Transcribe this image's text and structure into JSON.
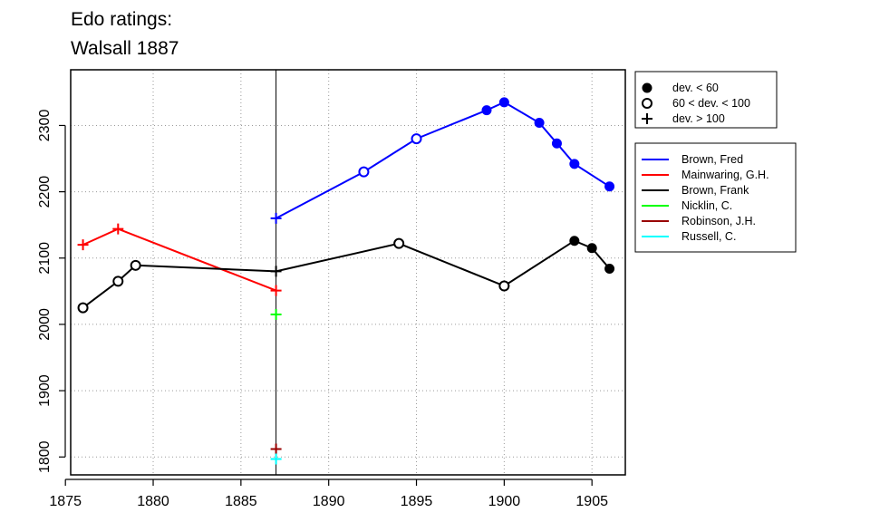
{
  "chart_data": {
    "type": "line",
    "title_lines": [
      "Edo ratings:",
      "Walsall 1887"
    ],
    "xlabel": "",
    "ylabel": "",
    "xlim": [
      1875.3,
      1906.9
    ],
    "ylim": [
      1773,
      2384
    ],
    "xticks": [
      1875,
      1880,
      1885,
      1890,
      1895,
      1900,
      1905
    ],
    "yticks": [
      1800,
      1900,
      2000,
      2100,
      2200,
      2300
    ],
    "grid": true,
    "reference_line_x": 1887,
    "series": [
      {
        "name": "Brown, Fred",
        "color": "#0000ff",
        "points": [
          {
            "x": 1887,
            "y": 2160,
            "dev": "plus"
          },
          {
            "x": 1892,
            "y": 2230,
            "dev": "open"
          },
          {
            "x": 1895,
            "y": 2280,
            "dev": "open"
          },
          {
            "x": 1899,
            "y": 2323,
            "dev": "filled"
          },
          {
            "x": 1900,
            "y": 2335,
            "dev": "filled"
          },
          {
            "x": 1902,
            "y": 2304,
            "dev": "filled"
          },
          {
            "x": 1903,
            "y": 2273,
            "dev": "filled"
          },
          {
            "x": 1904,
            "y": 2242,
            "dev": "filled"
          },
          {
            "x": 1906,
            "y": 2208,
            "dev": "filled"
          }
        ]
      },
      {
        "name": "Mainwaring, G.H.",
        "color": "#ff0000",
        "points": [
          {
            "x": 1876,
            "y": 2120,
            "dev": "plus"
          },
          {
            "x": 1878,
            "y": 2144,
            "dev": "plus"
          },
          {
            "x": 1887,
            "y": 2051,
            "dev": "plus"
          }
        ]
      },
      {
        "name": "Brown, Frank",
        "color": "#000000",
        "points": [
          {
            "x": 1876,
            "y": 2025,
            "dev": "open"
          },
          {
            "x": 1878,
            "y": 2065,
            "dev": "open"
          },
          {
            "x": 1879,
            "y": 2089,
            "dev": "open"
          },
          {
            "x": 1887,
            "y": 2080,
            "dev": "plus"
          },
          {
            "x": 1894,
            "y": 2122,
            "dev": "open"
          },
          {
            "x": 1900,
            "y": 2058,
            "dev": "open"
          },
          {
            "x": 1904,
            "y": 2126,
            "dev": "filled"
          },
          {
            "x": 1905,
            "y": 2115,
            "dev": "filled"
          },
          {
            "x": 1906,
            "y": 2084,
            "dev": "filled"
          }
        ]
      },
      {
        "name": "Nicklin, C.",
        "color": "#00ff00",
        "points": [
          {
            "x": 1887,
            "y": 2015,
            "dev": "plus"
          }
        ]
      },
      {
        "name": "Robinson, J.H.",
        "color": "#990000",
        "points": [
          {
            "x": 1887,
            "y": 1812,
            "dev": "plus"
          }
        ]
      },
      {
        "name": "Russell, C.",
        "color": "#00ffff",
        "points": [
          {
            "x": 1887,
            "y": 1797,
            "dev": "plus"
          }
        ]
      }
    ],
    "symbol_legend": [
      {
        "symbol": "filled",
        "label": "dev. < 60"
      },
      {
        "symbol": "open",
        "label": "60 < dev. < 100"
      },
      {
        "symbol": "plus",
        "label": "dev. > 100"
      }
    ],
    "legend_position": "right"
  }
}
